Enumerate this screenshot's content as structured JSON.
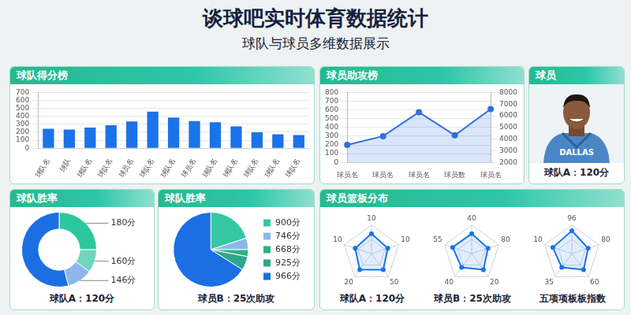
{
  "title": "谈球吧实时体育数据统计",
  "subtitle": "球队与球员多维数据展示",
  "chart_data": [
    {
      "type": "bar",
      "title": "球队得分榜",
      "categories": [
        "球队名",
        "球队",
        "球队名",
        "球队名",
        "球员名",
        "球队名",
        "球队名",
        "球员名",
        "球队名",
        "球队名",
        "球队名",
        "球队名",
        "球队名"
      ],
      "values": [
        245,
        235,
        260,
        290,
        335,
        460,
        385,
        340,
        325,
        275,
        200,
        175,
        165
      ],
      "color": "#1a73e8",
      "ylim": [
        0,
        700
      ],
      "yticks": [
        0,
        100,
        200,
        300,
        400,
        500,
        600,
        700
      ],
      "grid": true
    },
    {
      "type": "line",
      "title": "球员助攻榜",
      "categories": [
        "球员名",
        "球员名",
        "球员名",
        "球员数",
        "球员名"
      ],
      "values": [
        200,
        300,
        575,
        310,
        610
      ],
      "color": "#2f6fde",
      "marker": "circle",
      "ylim": [
        0,
        800
      ],
      "yticks": [
        0,
        100,
        200,
        300,
        400,
        500,
        600,
        700,
        800
      ],
      "y2lim": [
        2000,
        8000
      ],
      "y2ticks": [
        2000,
        3000,
        4000,
        5000,
        6000,
        7000,
        8000
      ],
      "grid": true
    },
    {
      "type": "doughnut",
      "title": "球队胜率",
      "categories": [
        "180分",
        "160分",
        "146分",
        null
      ],
      "values": [
        25,
        10,
        11,
        54
      ],
      "colors": [
        "#2cc79c",
        "#6fd6bd",
        "#8fb6ea",
        "#1b6fe3"
      ],
      "caption": "球队A：120分"
    },
    {
      "type": "pie",
      "title": "球队胜率",
      "categories": [
        "900分",
        "746分",
        "668分",
        "925分",
        "966分"
      ],
      "values": [
        20,
        5,
        3,
        6,
        66
      ],
      "colors": [
        "#34c9a3",
        "#8fb6ea",
        "#25b57e",
        "#2fa68a",
        "#1b6fe3"
      ],
      "legend": "right",
      "caption": "球员B：25次助攻"
    },
    {
      "type": "radar",
      "title": "球员篮板分布",
      "categories": [
        "10",
        "10",
        "50",
        "20",
        "10"
      ],
      "values": [
        7,
        6,
        7,
        7,
        6
      ],
      "color": "#1a73e8",
      "ylim": [
        0,
        10
      ],
      "yticks": [
        0,
        5,
        10
      ],
      "tick_labels": false,
      "caption": "球队A：120分"
    },
    {
      "type": "radar",
      "categories": [
        "40",
        "80",
        "20",
        "40",
        "55"
      ],
      "values": [
        7,
        6,
        7,
        6,
        7
      ],
      "color": "#1a73e8",
      "ylim": [
        0,
        10
      ],
      "yticks": [
        0,
        5,
        10
      ],
      "tick_labels": false,
      "caption": "球员B：25次助攻"
    },
    {
      "type": "radar",
      "categories": [
        "96",
        "80",
        "60",
        "35",
        "10"
      ],
      "values": [
        8,
        6,
        7,
        6,
        7
      ],
      "color": "#1a73e8",
      "ylim": [
        0,
        10
      ],
      "yticks": [
        0,
        5,
        10
      ],
      "tick_labels": false,
      "caption": "五项项板板指数"
    }
  ],
  "player": {
    "title": "球员",
    "jersey_text": "DALLAS",
    "caption": "球队A：120分"
  }
}
